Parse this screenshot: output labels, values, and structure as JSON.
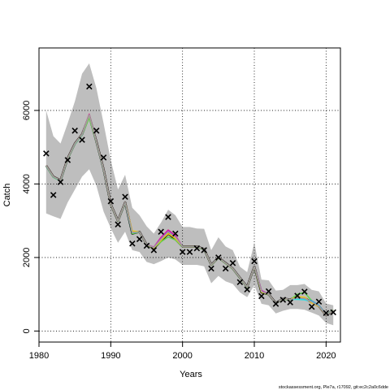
{
  "chart_data": {
    "type": "line",
    "xlabel": "Years",
    "ylabel": "Catch",
    "xlim": [
      1980,
      2022
    ],
    "ylim": [
      -300,
      7700
    ],
    "grid": true,
    "xticks": [
      1980,
      1990,
      2000,
      2010,
      2020
    ],
    "yticks": [
      0,
      2000,
      4000,
      6000
    ],
    "footer": "stockassessment.org, Ple7a, r17092, git:ec2c2a0c6dde",
    "band": {
      "x": [
        1981,
        1982,
        1983,
        1984,
        1985,
        1986,
        1987,
        1988,
        1989,
        1990,
        1991,
        1992,
        1993,
        1994,
        1995,
        1996,
        1997,
        1998,
        1999,
        2000,
        2001,
        2002,
        2003,
        2004,
        2005,
        2006,
        2007,
        2008,
        2009,
        2010,
        2011,
        2012,
        2013,
        2014,
        2015,
        2016,
        2017,
        2018,
        2019,
        2020,
        2021
      ],
      "lower": [
        3200,
        3120,
        3050,
        3500,
        3850,
        4200,
        4400,
        3950,
        3250,
        2800,
        2400,
        2700,
        2200,
        2150,
        1880,
        1820,
        1900,
        2000,
        1950,
        1800,
        1800,
        1800,
        1760,
        1300,
        1500,
        1350,
        1280,
        1050,
        920,
        1250,
        740,
        700,
        480,
        550,
        600,
        600,
        580,
        500,
        420,
        220,
        160
      ],
      "upper": [
        6000,
        5300,
        5100,
        5650,
        6250,
        7000,
        7280,
        6600,
        5650,
        4650,
        3850,
        4250,
        3350,
        3150,
        2850,
        2650,
        2950,
        3300,
        3150,
        2830,
        2830,
        2790,
        2780,
        2200,
        2550,
        2300,
        2200,
        1750,
        1600,
        2400,
        1400,
        1380,
        1100,
        1120,
        1250,
        1250,
        1280,
        1120,
        1080,
        750,
        700
      ]
    },
    "series": [
      {
        "color": "#000000",
        "values": [
          4500,
          4200,
          4100,
          4700,
          5100,
          5350,
          5850,
          5150,
          4400,
          3450,
          3000,
          3500,
          2650,
          2700,
          2350,
          2250,
          2450,
          2650,
          2500,
          2300,
          2300,
          2300,
          2230,
          1800,
          2000,
          1850,
          1700,
          1450,
          1200,
          1750,
          1050,
          1000,
          760,
          880,
          860,
          920,
          900,
          780,
          680,
          430,
          560
        ]
      },
      {
        "color": "#df536b",
        "values": [
          4500,
          4200,
          4100,
          4700,
          5100,
          5350,
          5900,
          5150,
          4400,
          3450,
          3000,
          3500,
          2700,
          2700,
          2350,
          2280,
          2550,
          2750,
          2600,
          2300,
          2300,
          2300,
          2230,
          1800,
          2000,
          1850,
          1700,
          1450,
          1200,
          1750,
          1100,
          1000,
          760,
          880,
          860,
          920,
          880,
          780,
          680,
          430,
          560
        ]
      },
      {
        "color": "#61d04f",
        "values": [
          4480,
          4180,
          4080,
          4680,
          5080,
          5330,
          5800,
          5130,
          4380,
          3440,
          2990,
          3480,
          2650,
          2690,
          2340,
          2260,
          2430,
          2560,
          2480,
          2290,
          2290,
          2290,
          2220,
          1790,
          1990,
          1840,
          1690,
          1440,
          1190,
          1740,
          1060,
          990,
          760,
          870,
          850,
          1000,
          1050,
          820,
          690,
          440,
          570
        ]
      },
      {
        "color": "#2297e6",
        "values": [
          4490,
          4190,
          4090,
          4690,
          5090,
          5340,
          5870,
          5140,
          4390,
          3450,
          3000,
          3490,
          2680,
          2700,
          2350,
          2270,
          2500,
          2700,
          2550,
          2300,
          2300,
          2300,
          2230,
          1800,
          2000,
          1850,
          1700,
          1450,
          1200,
          1750,
          1080,
          1000,
          760,
          880,
          860,
          880,
          870,
          820,
          700,
          440,
          560
        ]
      },
      {
        "color": "#28e2e5",
        "values": [
          4500,
          4200,
          4100,
          4700,
          5100,
          5350,
          5880,
          5150,
          4400,
          3450,
          3000,
          3500,
          2680,
          2700,
          2350,
          2270,
          2520,
          2720,
          2570,
          2300,
          2300,
          2300,
          2230,
          1800,
          2000,
          1850,
          1700,
          1450,
          1200,
          1750,
          1090,
          1000,
          760,
          880,
          860,
          860,
          850,
          800,
          690,
          430,
          560
        ]
      },
      {
        "color": "#cd0bbc",
        "values": [
          4500,
          4200,
          4100,
          4700,
          5100,
          5350,
          5890,
          5150,
          4400,
          3450,
          3000,
          3500,
          2690,
          2700,
          2350,
          2280,
          2540,
          2740,
          2590,
          2300,
          2300,
          2300,
          2230,
          1800,
          2000,
          1850,
          1700,
          1450,
          1200,
          1750,
          1100,
          1000,
          760,
          880,
          860,
          910,
          890,
          790,
          680,
          430,
          560
        ]
      },
      {
        "color": "#f5c710",
        "values": [
          4500,
          4200,
          4100,
          4700,
          5100,
          5350,
          5870,
          5150,
          4400,
          3450,
          3000,
          3500,
          2720,
          2700,
          2350,
          2260,
          2470,
          2650,
          2520,
          2300,
          2300,
          2300,
          2230,
          1800,
          2000,
          1850,
          1700,
          1450,
          1200,
          1750,
          1060,
          1000,
          760,
          880,
          860,
          930,
          920,
          760,
          670,
          430,
          560
        ]
      },
      {
        "color": "#9e9e9e",
        "values": [
          4500,
          4200,
          4100,
          4700,
          5100,
          5350,
          5880,
          5150,
          4400,
          3450,
          3000,
          3500,
          2680,
          2700,
          2350,
          2270,
          2500,
          2700,
          2560,
          2300,
          2300,
          2300,
          2230,
          1800,
          2000,
          1850,
          1700,
          1450,
          1200,
          1750,
          1080,
          1000,
          760,
          880,
          860,
          900,
          890,
          790,
          680,
          430,
          560
        ]
      }
    ],
    "observed": {
      "x": [
        1981,
        1982,
        1983,
        1984,
        1985,
        1986,
        1987,
        1988,
        1989,
        1990,
        1991,
        1992,
        1993,
        1994,
        1995,
        1996,
        1997,
        1998,
        1999,
        2000,
        2001,
        2002,
        2003,
        2004,
        2005,
        2006,
        2007,
        2008,
        2009,
        2010,
        2011,
        2012,
        2013,
        2014,
        2015,
        2016,
        2017,
        2018,
        2019,
        2020,
        2021
      ],
      "y": [
        4830,
        3700,
        4050,
        4650,
        5450,
        5200,
        6650,
        5450,
        4720,
        3530,
        2900,
        3650,
        2380,
        2500,
        2320,
        2200,
        2700,
        3100,
        2650,
        2150,
        2150,
        2250,
        2200,
        1700,
        2000,
        1700,
        1850,
        1330,
        1130,
        1900,
        950,
        1080,
        740,
        850,
        780,
        960,
        1070,
        660,
        800,
        490,
        510
      ]
    }
  }
}
